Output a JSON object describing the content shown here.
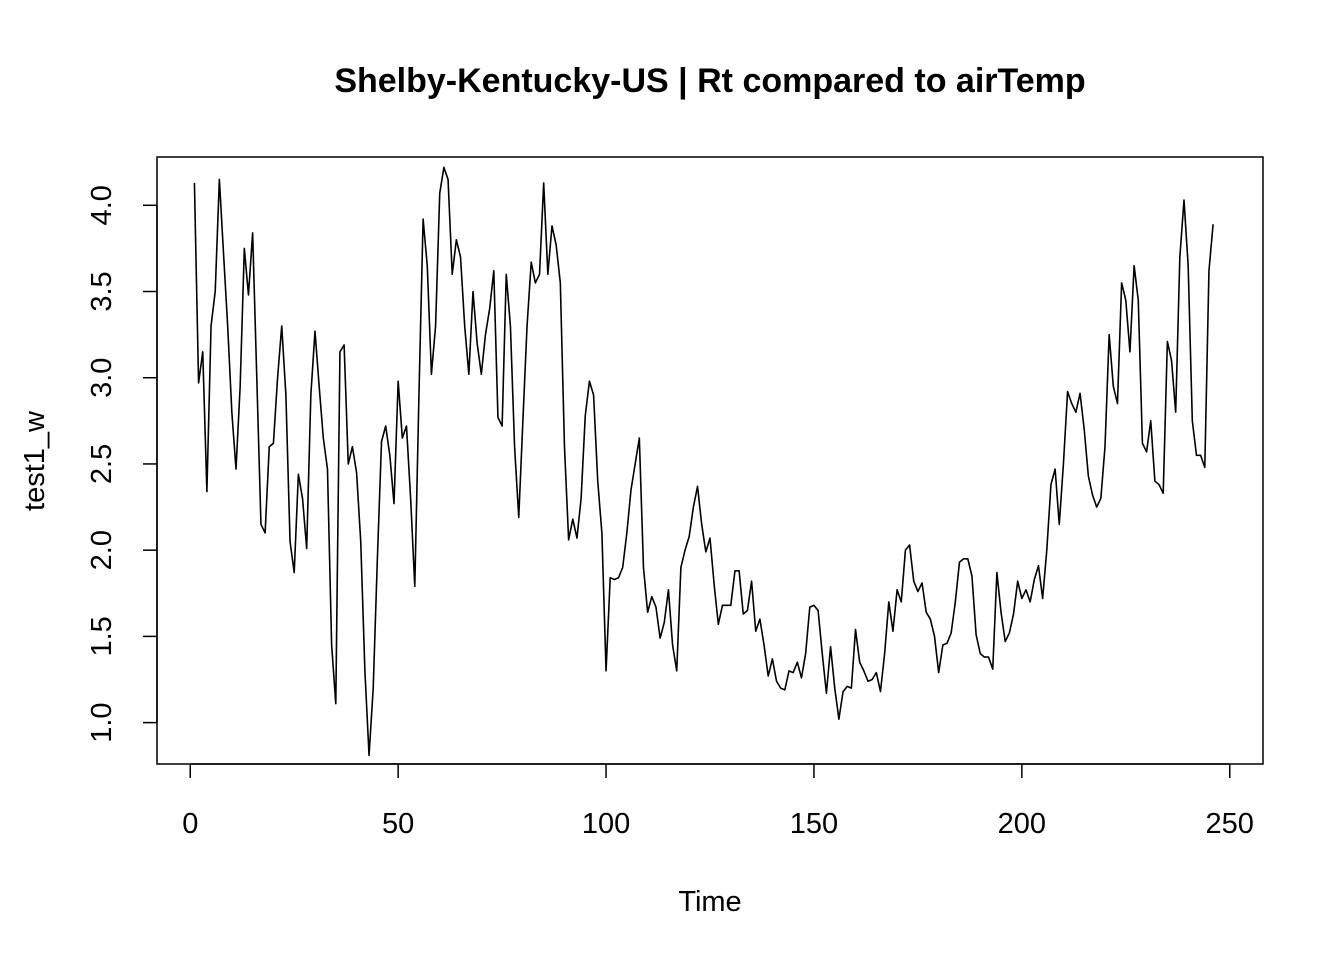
{
  "chart_data": {
    "type": "line",
    "title": "Shelby-Kentucky-US | Rt compared to airTemp",
    "xlabel": "Time",
    "ylabel": "test1_w",
    "xlim": [
      -8,
      258
    ],
    "ylim": [
      0.76,
      4.28
    ],
    "x_ticks": [
      0,
      50,
      100,
      150,
      200,
      250
    ],
    "x_tick_labels": [
      "0",
      "50",
      "100",
      "150",
      "200",
      "250"
    ],
    "y_ticks": [
      1.0,
      1.5,
      2.0,
      2.5,
      3.0,
      3.5,
      4.0
    ],
    "y_tick_labels": [
      "1.0",
      "1.5",
      "2.0",
      "2.5",
      "3.0",
      "3.5",
      "4.0"
    ],
    "grid": false,
    "legend": "none",
    "line_color": "#000000",
    "series": [
      {
        "x_start": 1,
        "values": [
          4.13,
          2.97,
          3.15,
          2.34,
          3.3,
          3.5,
          4.15,
          3.72,
          3.3,
          2.8,
          2.47,
          2.95,
          3.75,
          3.48,
          3.84,
          3.0,
          2.15,
          2.1,
          2.6,
          2.62,
          3.0,
          3.3,
          2.9,
          2.05,
          1.87,
          2.44,
          2.3,
          2.01,
          2.9,
          3.27,
          2.95,
          2.65,
          2.47,
          1.45,
          1.11,
          3.15,
          3.19,
          2.5,
          2.6,
          2.45,
          2.05,
          1.3,
          0.81,
          1.2,
          1.95,
          2.63,
          2.72,
          2.55,
          2.27,
          2.98,
          2.65,
          2.72,
          2.3,
          1.79,
          2.9,
          3.92,
          3.65,
          3.02,
          3.3,
          4.07,
          4.22,
          4.15,
          3.6,
          3.8,
          3.7,
          3.3,
          3.02,
          3.5,
          3.2,
          3.02,
          3.25,
          3.4,
          3.62,
          2.77,
          2.72,
          3.6,
          3.3,
          2.6,
          2.19,
          2.75,
          3.3,
          3.67,
          3.55,
          3.6,
          4.13,
          3.6,
          3.88,
          3.77,
          3.55,
          2.6,
          2.06,
          2.18,
          2.07,
          2.3,
          2.78,
          2.98,
          2.9,
          2.4,
          2.1,
          1.3,
          1.84,
          1.83,
          1.84,
          1.9,
          2.1,
          2.35,
          2.5,
          2.65,
          1.9,
          1.64,
          1.73,
          1.67,
          1.49,
          1.58,
          1.77,
          1.45,
          1.3,
          1.9,
          2.0,
          2.08,
          2.25,
          2.37,
          2.15,
          1.99,
          2.07,
          1.8,
          1.57,
          1.68,
          1.68,
          1.68,
          1.88,
          1.88,
          1.63,
          1.65,
          1.82,
          1.53,
          1.6,
          1.45,
          1.27,
          1.37,
          1.24,
          1.2,
          1.19,
          1.3,
          1.29,
          1.35,
          1.26,
          1.4,
          1.67,
          1.68,
          1.65,
          1.4,
          1.17,
          1.44,
          1.2,
          1.02,
          1.18,
          1.21,
          1.2,
          1.54,
          1.35,
          1.3,
          1.24,
          1.25,
          1.29,
          1.18,
          1.4,
          1.7,
          1.53,
          1.77,
          1.7,
          2.0,
          2.03,
          1.82,
          1.76,
          1.81,
          1.64,
          1.6,
          1.5,
          1.29,
          1.45,
          1.46,
          1.52,
          1.7,
          1.93,
          1.95,
          1.95,
          1.85,
          1.51,
          1.4,
          1.38,
          1.38,
          1.31,
          1.87,
          1.64,
          1.47,
          1.52,
          1.63,
          1.82,
          1.72,
          1.77,
          1.7,
          1.83,
          1.91,
          1.72,
          2.0,
          2.38,
          2.47,
          2.15,
          2.5,
          2.92,
          2.85,
          2.8,
          2.91,
          2.7,
          2.43,
          2.32,
          2.25,
          2.3,
          2.6,
          3.25,
          2.95,
          2.85,
          3.55,
          3.45,
          3.15,
          3.65,
          3.45,
          2.62,
          2.57,
          2.75,
          2.4,
          2.38,
          2.33,
          3.21,
          3.1,
          2.8,
          3.7,
          4.03,
          3.65,
          2.75,
          2.55,
          2.55,
          2.48,
          3.62,
          3.89
        ]
      }
    ]
  }
}
